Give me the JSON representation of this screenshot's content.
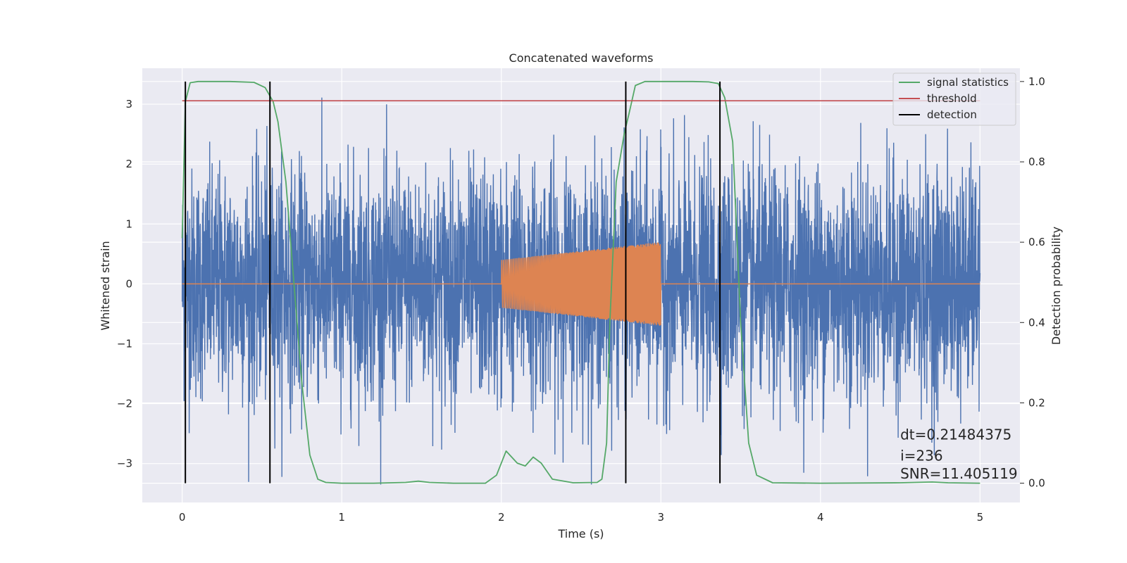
{
  "chart_data": {
    "type": "line",
    "title": "Concatenated waveforms",
    "xlabel": "Time (s)",
    "ylabel": "Whitened strain",
    "y2label": "Detection probability",
    "xlim": [
      -0.25,
      5.25
    ],
    "ylim": [
      -3.65,
      3.6
    ],
    "y2lim": [
      -0.048,
      1.033
    ],
    "xticks": [
      0,
      1,
      2,
      3,
      4,
      5
    ],
    "yticks": [
      -3,
      -2,
      -1,
      0,
      1,
      2,
      3
    ],
    "y2ticks": [
      0.0,
      0.2,
      0.4,
      0.6,
      0.8,
      1.0
    ],
    "xtick_labels": [
      "0",
      "1",
      "2",
      "3",
      "4",
      "5"
    ],
    "ytick_labels": [
      "−3",
      "−2",
      "−1",
      "0",
      "1",
      "2",
      "3"
    ],
    "y2tick_labels": [
      "0.0",
      "0.2",
      "0.4",
      "0.6",
      "0.8",
      "1.0"
    ],
    "grid": true,
    "legend_position": "top-right",
    "legend": [
      "signal statistics",
      "threshold",
      "detection"
    ],
    "series": [
      {
        "name": "whitened strain (noise)",
        "axis": "left",
        "color": "#4c72b0",
        "x_range": [
          0,
          5
        ],
        "approx_range": [
          -3.35,
          3.2
        ],
        "description_values": "dense noise, typical amplitude ~1.3"
      },
      {
        "name": "injected chirp",
        "axis": "left",
        "color": "#dd8452",
        "x_start": 2.0,
        "x_end": 3.0,
        "amp_start": 0.4,
        "amp_end": 0.7
      },
      {
        "name": "signal statistics",
        "axis": "right",
        "color": "#55a868",
        "x": [
          0,
          0.02,
          0.05,
          0.1,
          0.3,
          0.45,
          0.52,
          0.57,
          0.6,
          0.65,
          0.7,
          0.75,
          0.8,
          0.85,
          0.9,
          1.0,
          1.2,
          1.4,
          1.48,
          1.55,
          1.7,
          1.9,
          1.97,
          2.03,
          2.1,
          2.15,
          2.2,
          2.25,
          2.32,
          2.45,
          2.6,
          2.63,
          2.66,
          2.68,
          2.72,
          2.77,
          2.8,
          2.84,
          2.9,
          3.0,
          3.2,
          3.3,
          3.36,
          3.4,
          3.45,
          3.5,
          3.55,
          3.6,
          3.7,
          4.0,
          4.5,
          4.7,
          4.8,
          5.0
        ],
        "values": [
          0.61,
          0.95,
          0.997,
          1.0,
          1.0,
          0.998,
          0.985,
          0.95,
          0.9,
          0.75,
          0.5,
          0.25,
          0.07,
          0.01,
          0.002,
          0.0,
          0.0,
          0.002,
          0.005,
          0.002,
          0.0,
          0.0,
          0.02,
          0.08,
          0.05,
          0.043,
          0.065,
          0.05,
          0.01,
          0.001,
          0.002,
          0.01,
          0.1,
          0.4,
          0.75,
          0.87,
          0.92,
          0.99,
          1.0,
          1.0,
          1.0,
          0.999,
          0.995,
          0.96,
          0.85,
          0.4,
          0.1,
          0.02,
          0.001,
          0.0,
          0.001,
          0.003,
          0.001,
          0.0
        ]
      },
      {
        "name": "threshold",
        "axis": "right",
        "color": "#c44e52",
        "x": [
          0,
          5
        ],
        "values": [
          0.952,
          0.952
        ]
      },
      {
        "name": "detection",
        "axis": "right",
        "color": "#000000",
        "type": "vlines",
        "x": [
          0.02,
          0.55,
          2.78,
          3.37
        ],
        "y_range": [
          0.0,
          1.0
        ]
      }
    ],
    "annotations": [
      {
        "text": "dt=0.21484375",
        "x": 4.5,
        "y": -2.6
      },
      {
        "text": " i=236",
        "x": 4.5,
        "y": -2.95
      },
      {
        "text": "SNR=11.405119",
        "x": 4.5,
        "y": -3.25
      }
    ]
  }
}
